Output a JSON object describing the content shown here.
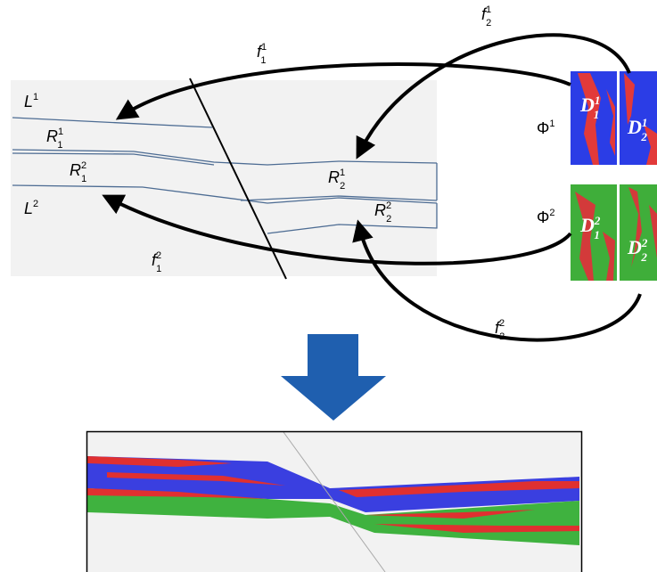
{
  "labels": [
    {
      "base": "f",
      "sup": "1",
      "sub": "2"
    },
    {
      "base": "f",
      "sup": "1",
      "sub": "1"
    },
    {
      "base": "L",
      "sup": "1"
    },
    {
      "base": "R",
      "sup": "1",
      "sub": "1"
    },
    {
      "base": "R",
      "sup": "2",
      "sub": "1"
    },
    {
      "base": "L",
      "sup": "2"
    },
    {
      "base": "R",
      "sup": "1",
      "sub": "2"
    },
    {
      "base": "R",
      "sup": "2",
      "sub": "2"
    },
    {
      "base": "Φ",
      "sup": "1"
    },
    {
      "base": "Φ",
      "sup": "2"
    },
    {
      "base": "f",
      "sup": "2",
      "sub": "1"
    },
    {
      "base": "f",
      "sup": "2",
      "sub": "2"
    },
    {
      "base": "D",
      "sup": "1",
      "sub": "1"
    },
    {
      "base": "D",
      "sup": "1",
      "sub": "2"
    },
    {
      "base": "D",
      "sup": "2",
      "sub": "1"
    },
    {
      "base": "D",
      "sup": "2",
      "sub": "2"
    }
  ]
}
